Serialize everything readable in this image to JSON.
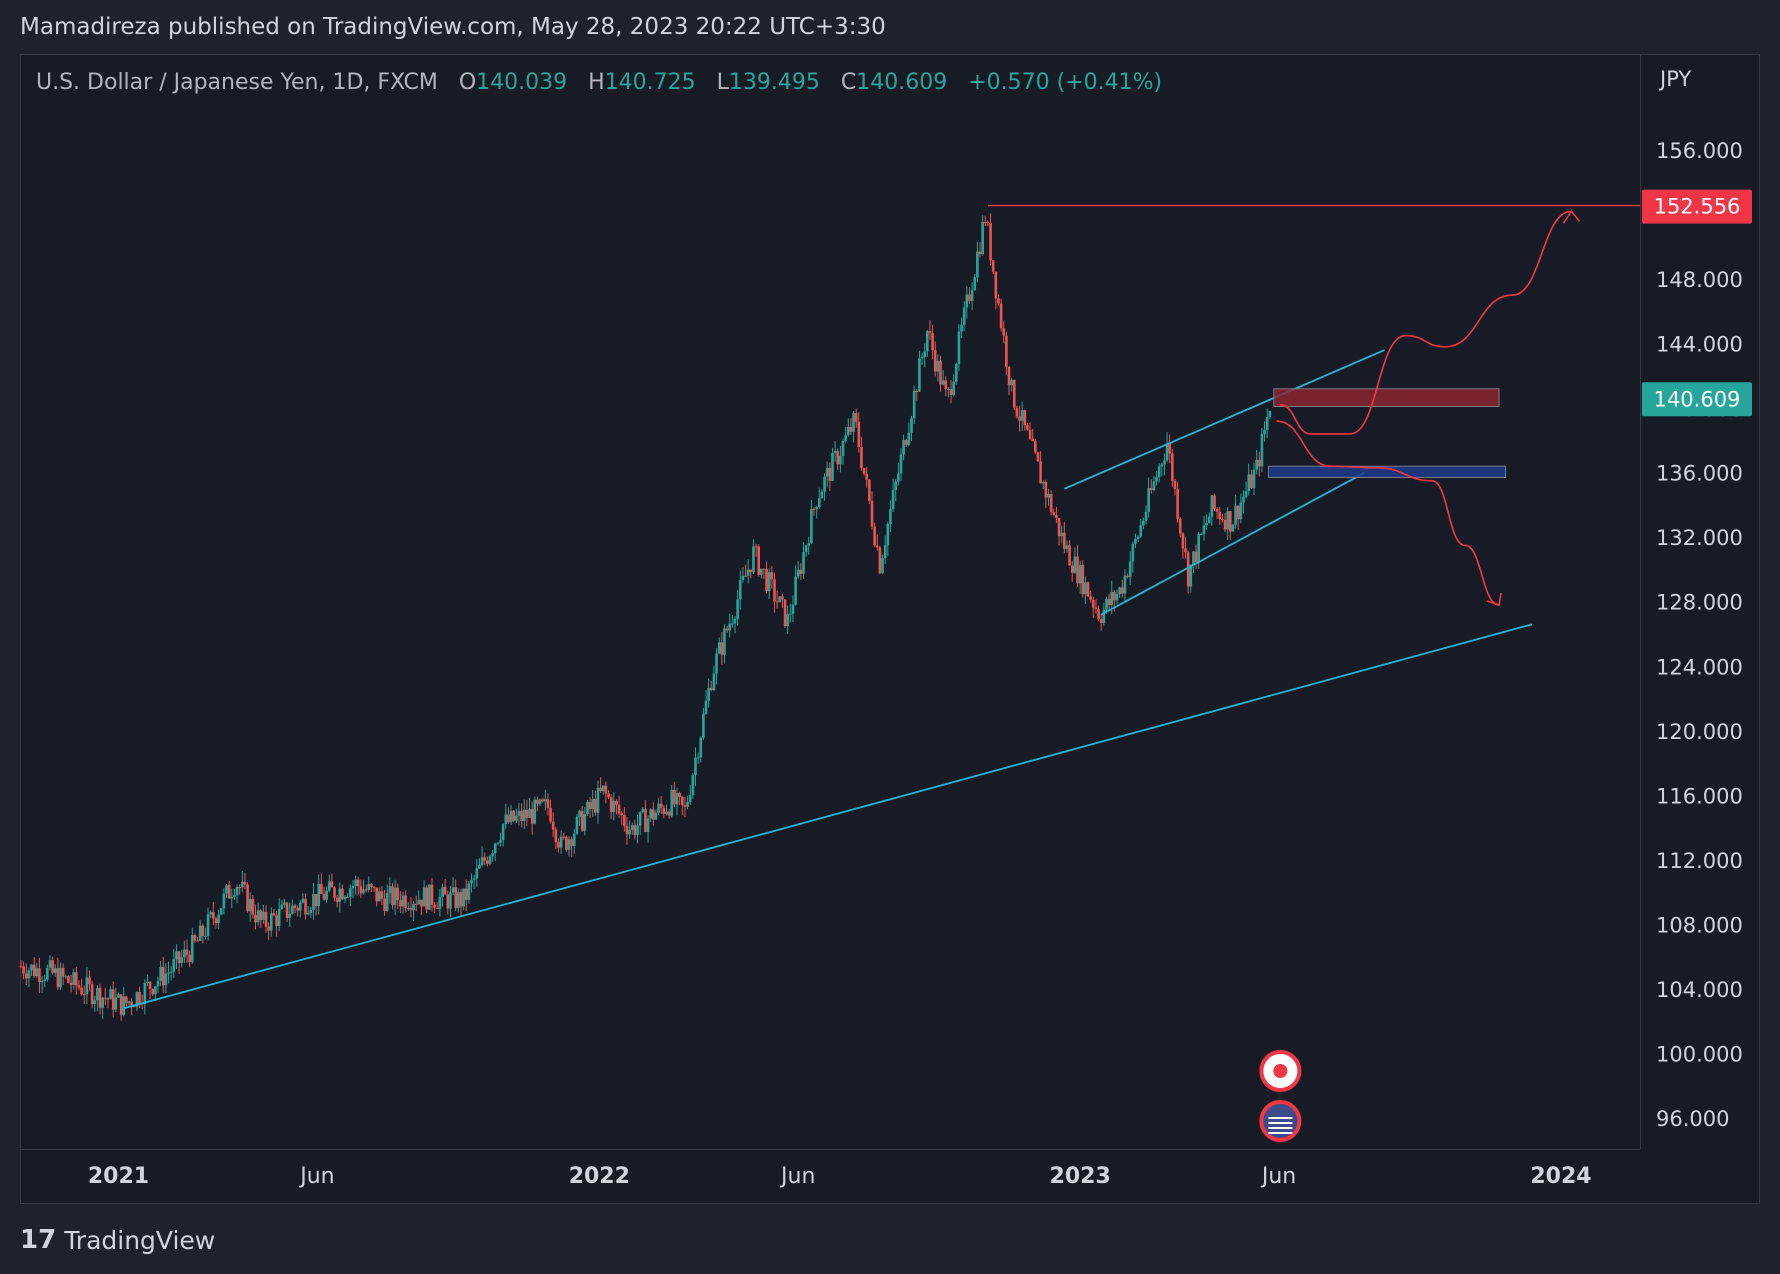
{
  "header": {
    "text": "Mamadireza published on TradingView.com, May 28, 2023 20:22 UTC+3:30"
  },
  "legend": {
    "symbol": "U.S. Dollar / Japanese Yen, 1D, FXCM",
    "o_label": "O",
    "o": "140.039",
    "h_label": "H",
    "h": "140.725",
    "l_label": "L",
    "l": "139.495",
    "c_label": "C",
    "c": "140.609",
    "change": "+0.570 (+0.41%)"
  },
  "currency": "JPY",
  "brand": "TradingView",
  "colors": {
    "up": "#26a69a",
    "down": "#ef5350",
    "trendline": "#22b8d4",
    "resistance": "#f23645",
    "current": "#26a69a"
  },
  "chart_data": {
    "type": "candlestick",
    "title": "U.S. Dollar / Japanese Yen, 1D, FXCM",
    "ylabel": "JPY",
    "ylim": [
      94,
      160
    ],
    "y_ticks": [
      "96.000",
      "100.000",
      "104.000",
      "108.000",
      "112.000",
      "116.000",
      "120.000",
      "124.000",
      "128.000",
      "132.000",
      "136.000",
      "140.000",
      "144.000",
      "148.000",
      "152.000",
      "156.000"
    ],
    "x_ticks": [
      {
        "label": "2021",
        "date": "2021-01-01"
      },
      {
        "label": "Jun",
        "date": "2021-06-01"
      },
      {
        "label": "2022",
        "date": "2022-01-01"
      },
      {
        "label": "Jun",
        "date": "2022-06-01"
      },
      {
        "label": "2023",
        "date": "2023-01-01"
      },
      {
        "label": "Jun",
        "date": "2023-06-01"
      },
      {
        "label": "2024",
        "date": "2024-01-01"
      }
    ],
    "xlim": [
      "2020-10-19",
      "2024-03-01"
    ],
    "price_path": [
      [
        "2020-10-19",
        105.4
      ],
      [
        "2020-11-10",
        105.0
      ],
      [
        "2020-12-01",
        104.2
      ],
      [
        "2021-01-05",
        103.0
      ],
      [
        "2021-02-10",
        105.2
      ],
      [
        "2021-03-01",
        106.8
      ],
      [
        "2021-03-31",
        110.7
      ],
      [
        "2021-04-20",
        108.0
      ],
      [
        "2021-05-25",
        109.5
      ],
      [
        "2021-06-30",
        110.5
      ],
      [
        "2021-07-20",
        109.6
      ],
      [
        "2021-08-20",
        109.7
      ],
      [
        "2021-09-20",
        109.5
      ],
      [
        "2021-10-20",
        114.2
      ],
      [
        "2021-11-24",
        115.3
      ],
      [
        "2021-12-03",
        112.8
      ],
      [
        "2022-01-04",
        116.2
      ],
      [
        "2022-01-25",
        113.9
      ],
      [
        "2022-02-25",
        115.6
      ],
      [
        "2022-03-07",
        115.0
      ],
      [
        "2022-03-28",
        123.7
      ],
      [
        "2022-04-28",
        131.0
      ],
      [
        "2022-05-24",
        126.8
      ],
      [
        "2022-06-15",
        134.5
      ],
      [
        "2022-07-14",
        139.2
      ],
      [
        "2022-08-02",
        130.4
      ],
      [
        "2022-09-07",
        144.8
      ],
      [
        "2022-09-22",
        140.4
      ],
      [
        "2022-10-21",
        151.9
      ],
      [
        "2022-11-10",
        141.0
      ],
      [
        "2022-12-20",
        131.5
      ],
      [
        "2023-01-16",
        127.2
      ],
      [
        "2023-02-01",
        128.8
      ],
      [
        "2023-03-08",
        137.9
      ],
      [
        "2023-03-24",
        129.7
      ],
      [
        "2023-04-11",
        133.8
      ],
      [
        "2023-04-26",
        133.0
      ],
      [
        "2023-05-15",
        136.2
      ],
      [
        "2023-05-26",
        140.6
      ]
    ],
    "last_price": "140.609",
    "resistance_level": "152.556",
    "zones": [
      {
        "color": "#8b2430",
        "y": [
          140.1,
          141.2
        ],
        "x": [
          "2023-05-28",
          "2023-11-15"
        ]
      },
      {
        "color": "#1e3a8a",
        "y": [
          135.7,
          136.4
        ],
        "x": [
          "2023-05-24",
          "2023-11-20"
        ]
      }
    ],
    "trendlines": [
      {
        "from": [
          "2021-01-05",
          102.8
        ],
        "to": [
          "2023-12-10",
          126.6
        ]
      },
      {
        "from": [
          "2023-01-17",
          127.2
        ],
        "to": [
          "2023-08-05",
          136.0
        ]
      },
      {
        "from": [
          "2022-12-20",
          135.0
        ],
        "to": [
          "2023-08-20",
          143.6
        ]
      }
    ],
    "projections": [
      {
        "color": "#f23645",
        "points": [
          [
            "2023-06-02",
            140.2
          ],
          [
            "2023-06-25",
            138.4
          ],
          [
            "2023-07-25",
            138.4
          ],
          [
            "2023-09-05",
            144.5
          ],
          [
            "2023-10-05",
            143.8
          ],
          [
            "2023-11-25",
            147.0
          ],
          [
            "2024-01-09",
            152.2
          ]
        ]
      },
      {
        "color": "#f23645",
        "points": [
          [
            "2023-05-30",
            139.2
          ],
          [
            "2023-07-10",
            136.4
          ],
          [
            "2023-08-15",
            136.3
          ],
          [
            "2023-09-25",
            135.5
          ],
          [
            "2023-10-20",
            131.5
          ],
          [
            "2023-11-15",
            127.8
          ]
        ]
      }
    ]
  }
}
